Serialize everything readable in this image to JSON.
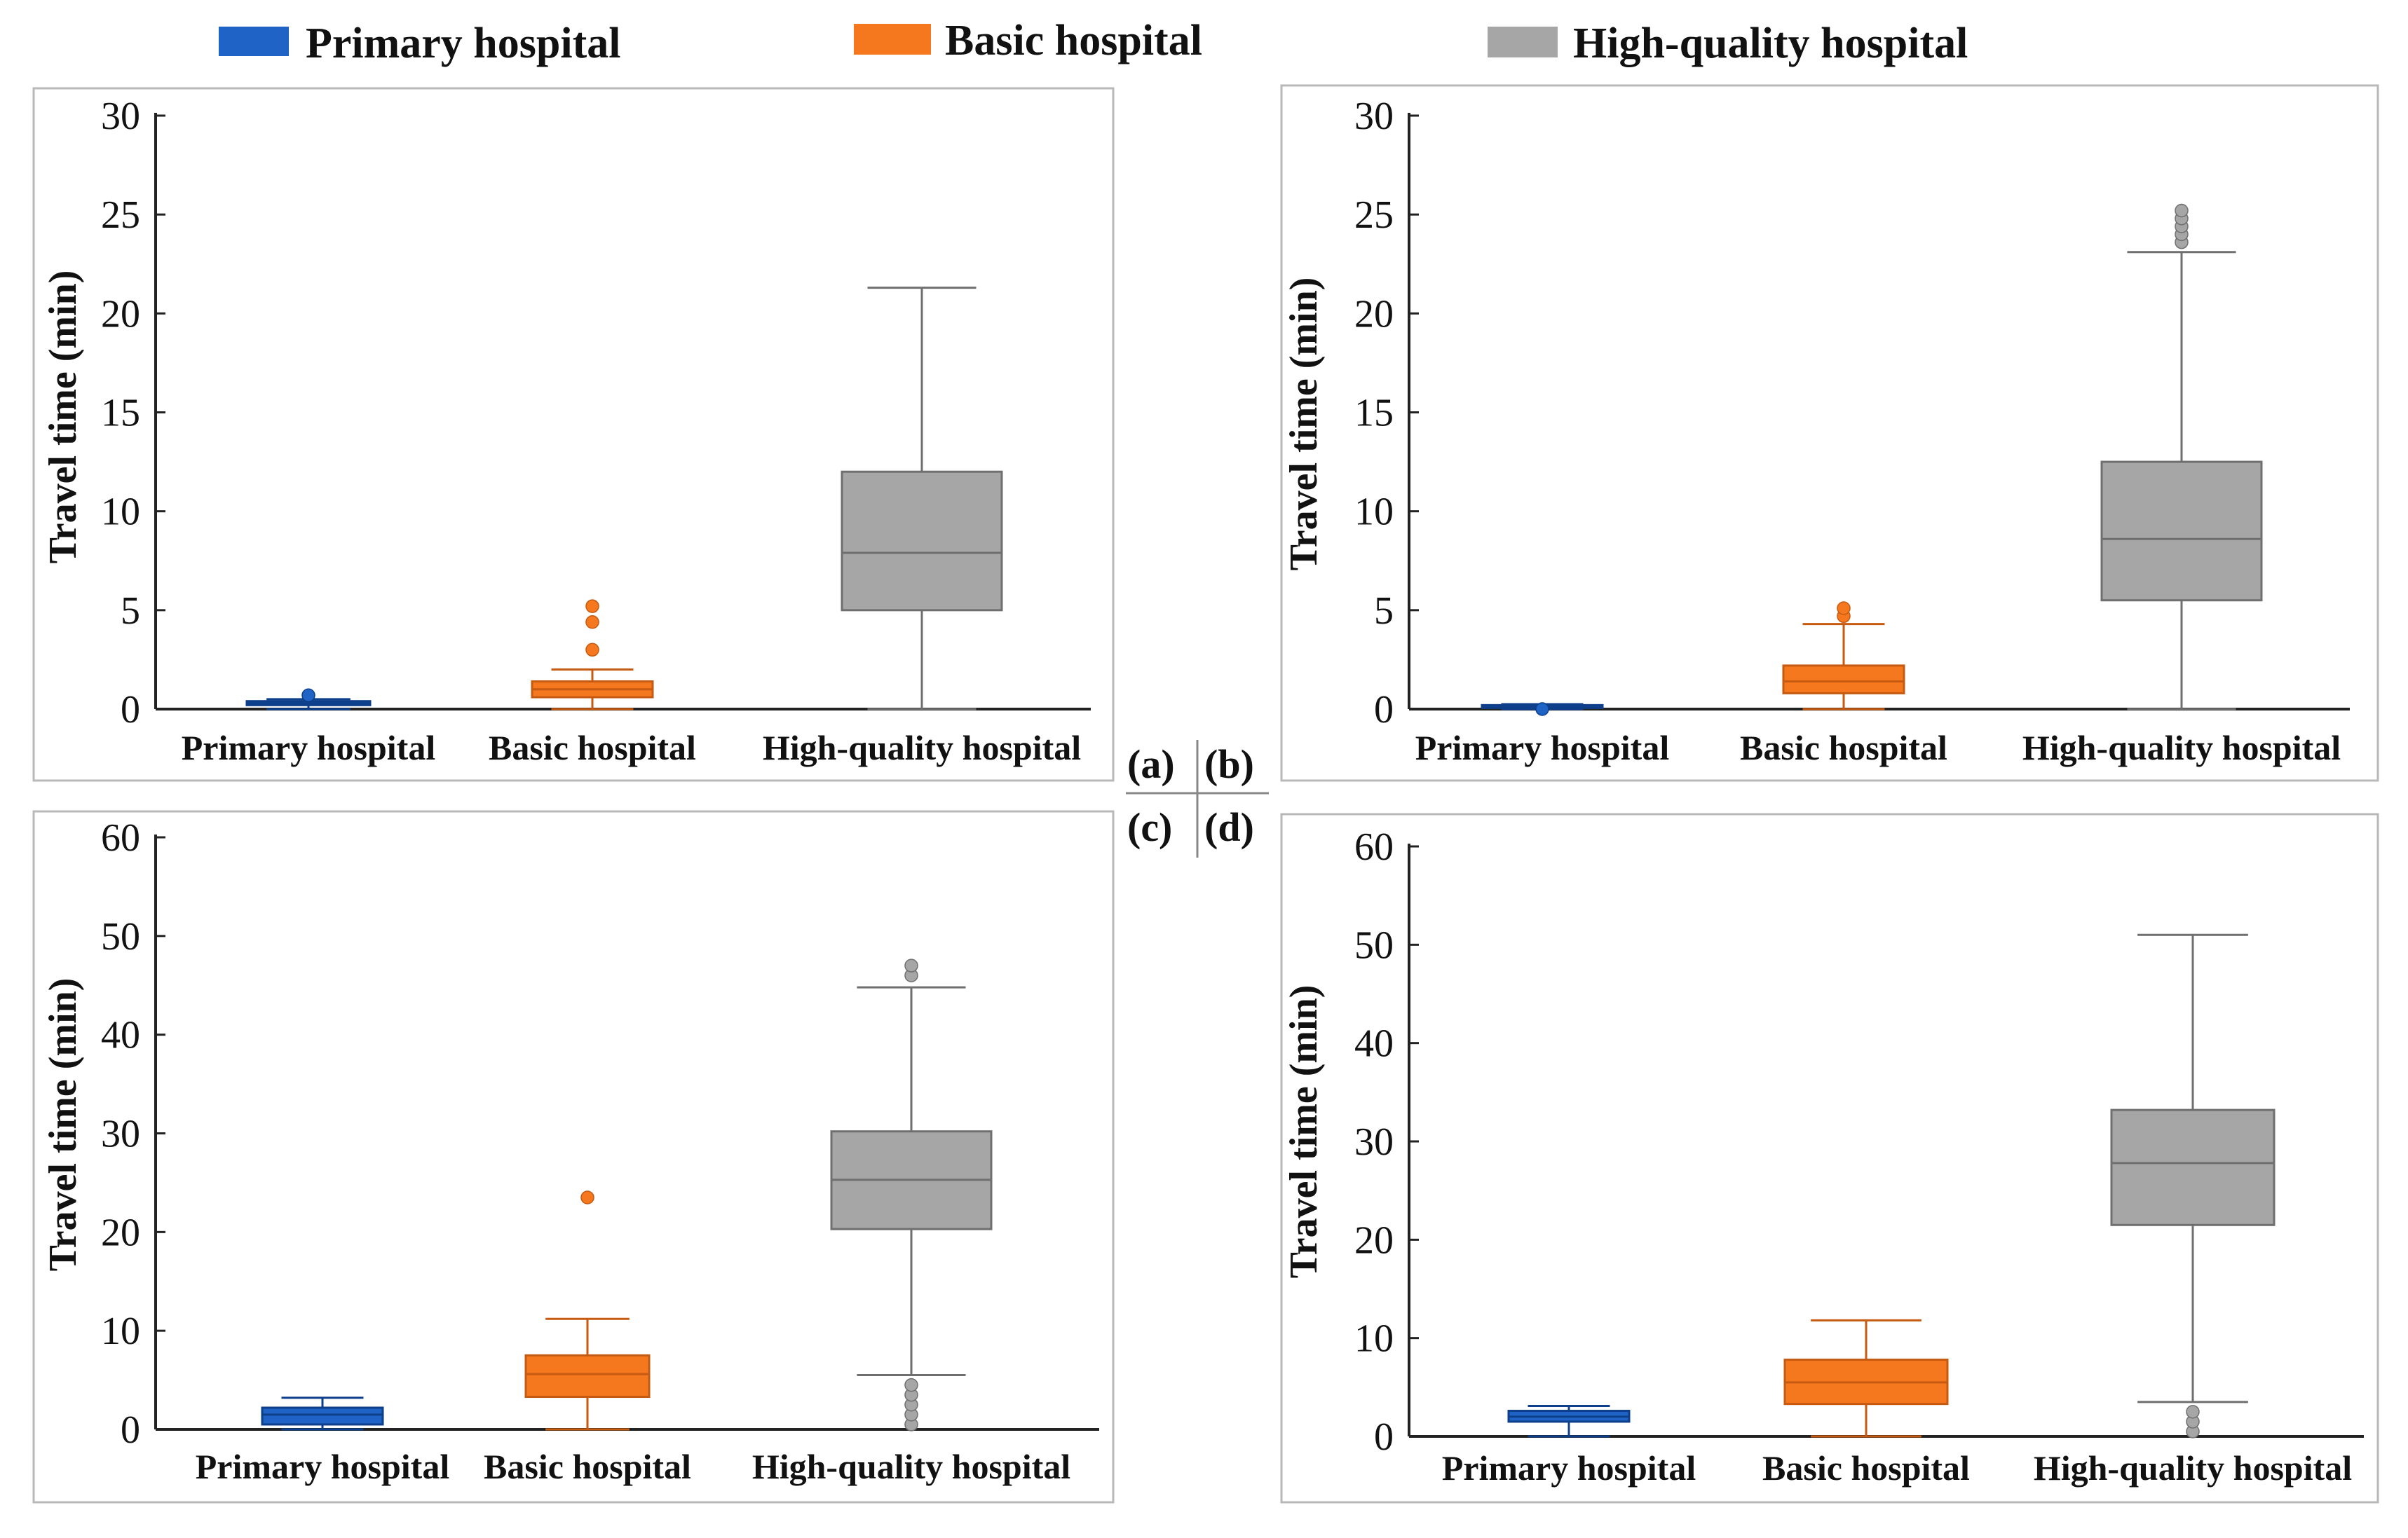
{
  "legend": [
    {
      "label": "Primary hospital",
      "color": "#1f63c6"
    },
    {
      "label": "Basic hospital",
      "color": "#f5781e"
    },
    {
      "label": "High-quality hospital",
      "color": "#a6a6a6"
    }
  ],
  "colors": {
    "primary": "#1f63c6",
    "basic": "#f5781e",
    "high_quality": "#a6a6a6",
    "median_primary": "#0d3f8a",
    "median_basic": "#c65a10",
    "median_high_quality": "#6f6f6f"
  },
  "chart_data": [
    {
      "type": "box",
      "panel": "(a)",
      "ylabel": "Travel time (min)",
      "ylim": [
        0,
        30
      ],
      "yticks": [
        0,
        5,
        10,
        15,
        20,
        25,
        30
      ],
      "categories": [
        "Primary hospital",
        "Basic hospital",
        "High-quality hospital"
      ],
      "series": [
        {
          "name": "Primary hospital",
          "color": "#1f63c6",
          "whisker_low": 0.0,
          "q1": 0.2,
          "median": 0.3,
          "q3": 0.4,
          "whisker_high": 0.5,
          "outliers": [
            0.7
          ]
        },
        {
          "name": "Basic hospital",
          "color": "#f5781e",
          "whisker_low": 0.0,
          "q1": 0.6,
          "median": 1.0,
          "q3": 1.4,
          "whisker_high": 2.0,
          "outliers": [
            3.0,
            4.4,
            5.2
          ]
        },
        {
          "name": "High-quality hospital",
          "color": "#a6a6a6",
          "whisker_low": 0.0,
          "q1": 5.0,
          "median": 7.9,
          "q3": 12.0,
          "whisker_high": 21.3,
          "outliers": []
        }
      ]
    },
    {
      "type": "box",
      "panel": "(b)",
      "ylabel": "Travel time (min)",
      "ylim": [
        0,
        30
      ],
      "yticks": [
        0,
        5,
        10,
        15,
        20,
        25,
        30
      ],
      "categories": [
        "Primary hospital",
        "Basic hospital",
        "High-quality hospital"
      ],
      "series": [
        {
          "name": "Primary hospital",
          "color": "#1f63c6",
          "whisker_low": 0.0,
          "q1": 0.1,
          "median": 0.15,
          "q3": 0.2,
          "whisker_high": 0.25,
          "outliers": [
            0.0
          ]
        },
        {
          "name": "Basic hospital",
          "color": "#f5781e",
          "whisker_low": 0.0,
          "q1": 0.8,
          "median": 1.4,
          "q3": 2.2,
          "whisker_high": 4.3,
          "outliers": [
            4.7,
            5.1
          ]
        },
        {
          "name": "High-quality hospital",
          "color": "#a6a6a6",
          "whisker_low": 0.0,
          "q1": 5.5,
          "median": 8.6,
          "q3": 12.5,
          "whisker_high": 23.1,
          "outliers": [
            23.6,
            24.0,
            24.4,
            24.8,
            25.2
          ]
        }
      ]
    },
    {
      "type": "box",
      "panel": "(c)",
      "ylabel": "Travel time (min)",
      "ylim": [
        0,
        60
      ],
      "yticks": [
        0,
        10,
        20,
        30,
        40,
        50,
        60
      ],
      "categories": [
        "Primary hospital",
        "Basic hospital",
        "High-quality hospital"
      ],
      "series": [
        {
          "name": "Primary hospital",
          "color": "#1f63c6",
          "whisker_low": 0.0,
          "q1": 0.5,
          "median": 1.5,
          "q3": 2.2,
          "whisker_high": 3.2,
          "outliers": []
        },
        {
          "name": "Basic hospital",
          "color": "#f5781e",
          "whisker_low": 0.0,
          "q1": 3.3,
          "median": 5.6,
          "q3": 7.5,
          "whisker_high": 11.2,
          "outliers": [
            23.5
          ]
        },
        {
          "name": "High-quality hospital",
          "color": "#a6a6a6",
          "whisker_low": 5.5,
          "q1": 20.3,
          "median": 25.3,
          "q3": 30.2,
          "whisker_high": 44.8,
          "outliers": [
            0.5,
            1.5,
            2.5,
            3.5,
            4.5,
            46.0,
            47.0
          ]
        }
      ]
    },
    {
      "type": "box",
      "panel": "(d)",
      "ylabel": "Travel time (min)",
      "ylim": [
        0,
        60
      ],
      "yticks": [
        0,
        10,
        20,
        30,
        40,
        50,
        60
      ],
      "categories": [
        "Primary hospital",
        "Basic hospital",
        "High-quality hospital"
      ],
      "series": [
        {
          "name": "Primary hospital",
          "color": "#1f63c6",
          "whisker_low": 0.0,
          "q1": 1.5,
          "median": 2.0,
          "q3": 2.6,
          "whisker_high": 3.1,
          "outliers": []
        },
        {
          "name": "Basic hospital",
          "color": "#f5781e",
          "whisker_low": 0.0,
          "q1": 3.3,
          "median": 5.5,
          "q3": 7.8,
          "whisker_high": 11.8,
          "outliers": []
        },
        {
          "name": "High-quality hospital",
          "color": "#a6a6a6",
          "whisker_low": 3.5,
          "q1": 21.5,
          "median": 27.8,
          "q3": 33.2,
          "whisker_high": 51.0,
          "outliers": [
            0.5,
            1.5,
            2.5
          ]
        }
      ]
    }
  ]
}
